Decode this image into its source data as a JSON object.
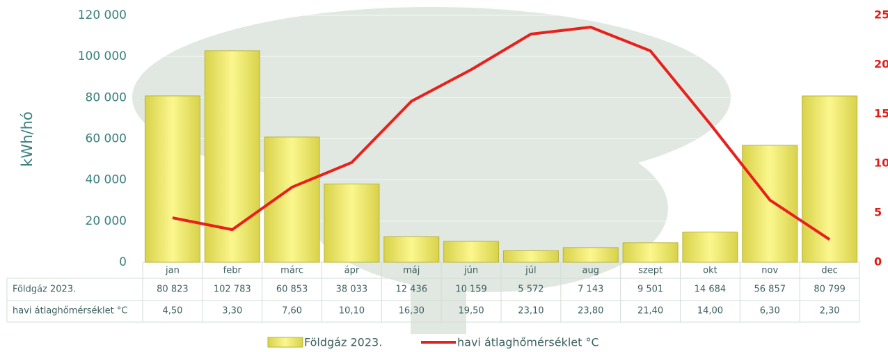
{
  "chart_data": {
    "type": "bar",
    "y_label": "kWh/hó",
    "categories": [
      "jan",
      "febr",
      "márc",
      "ápr",
      "máj",
      "jún",
      "júl",
      "aug",
      "szept",
      "okt",
      "nov",
      "dec"
    ],
    "series": [
      {
        "name": "Földgáz 2023.",
        "type": "bar",
        "color": "#f2ec6a",
        "values": [
          80823,
          102783,
          60853,
          38033,
          12436,
          10159,
          5572,
          7143,
          9501,
          14684,
          56857,
          80799
        ],
        "value_labels": [
          "80 823",
          "102 783",
          "60 853",
          "38 033",
          "12 436",
          "10 159",
          "5 572",
          "7 143",
          "9 501",
          "14 684",
          "56 857",
          "80 799"
        ]
      },
      {
        "name": "havi átlaghőmérséklet °C",
        "type": "line",
        "axis": "y2",
        "color": "#e8201c",
        "values": [
          4.5,
          3.3,
          7.6,
          10.1,
          16.3,
          19.5,
          23.1,
          23.8,
          21.4,
          14.0,
          6.3,
          2.3
        ],
        "value_labels": [
          "4,50",
          "3,30",
          "7,60",
          "10,10",
          "16,30",
          "19,50",
          "23,10",
          "23,80",
          "21,40",
          "14,00",
          "6,30",
          "2,30"
        ]
      }
    ],
    "ylim": [
      0,
      120000
    ],
    "yticks": [
      0,
      {
        "value": 20000,
        "label": "20 000"
      },
      {
        "value": 40000,
        "label": "40 000"
      },
      {
        "value": 60000,
        "label": "60 000"
      },
      {
        "value": 80000,
        "label": "80 000"
      },
      {
        "value": 100000,
        "label": "100 000"
      },
      {
        "value": 120000,
        "label": "120 000"
      }
    ],
    "y2lim": [
      0,
      25
    ],
    "y2ticks": [
      0,
      5,
      10,
      15,
      20,
      25
    ],
    "grid": true,
    "legend": "bottom"
  }
}
